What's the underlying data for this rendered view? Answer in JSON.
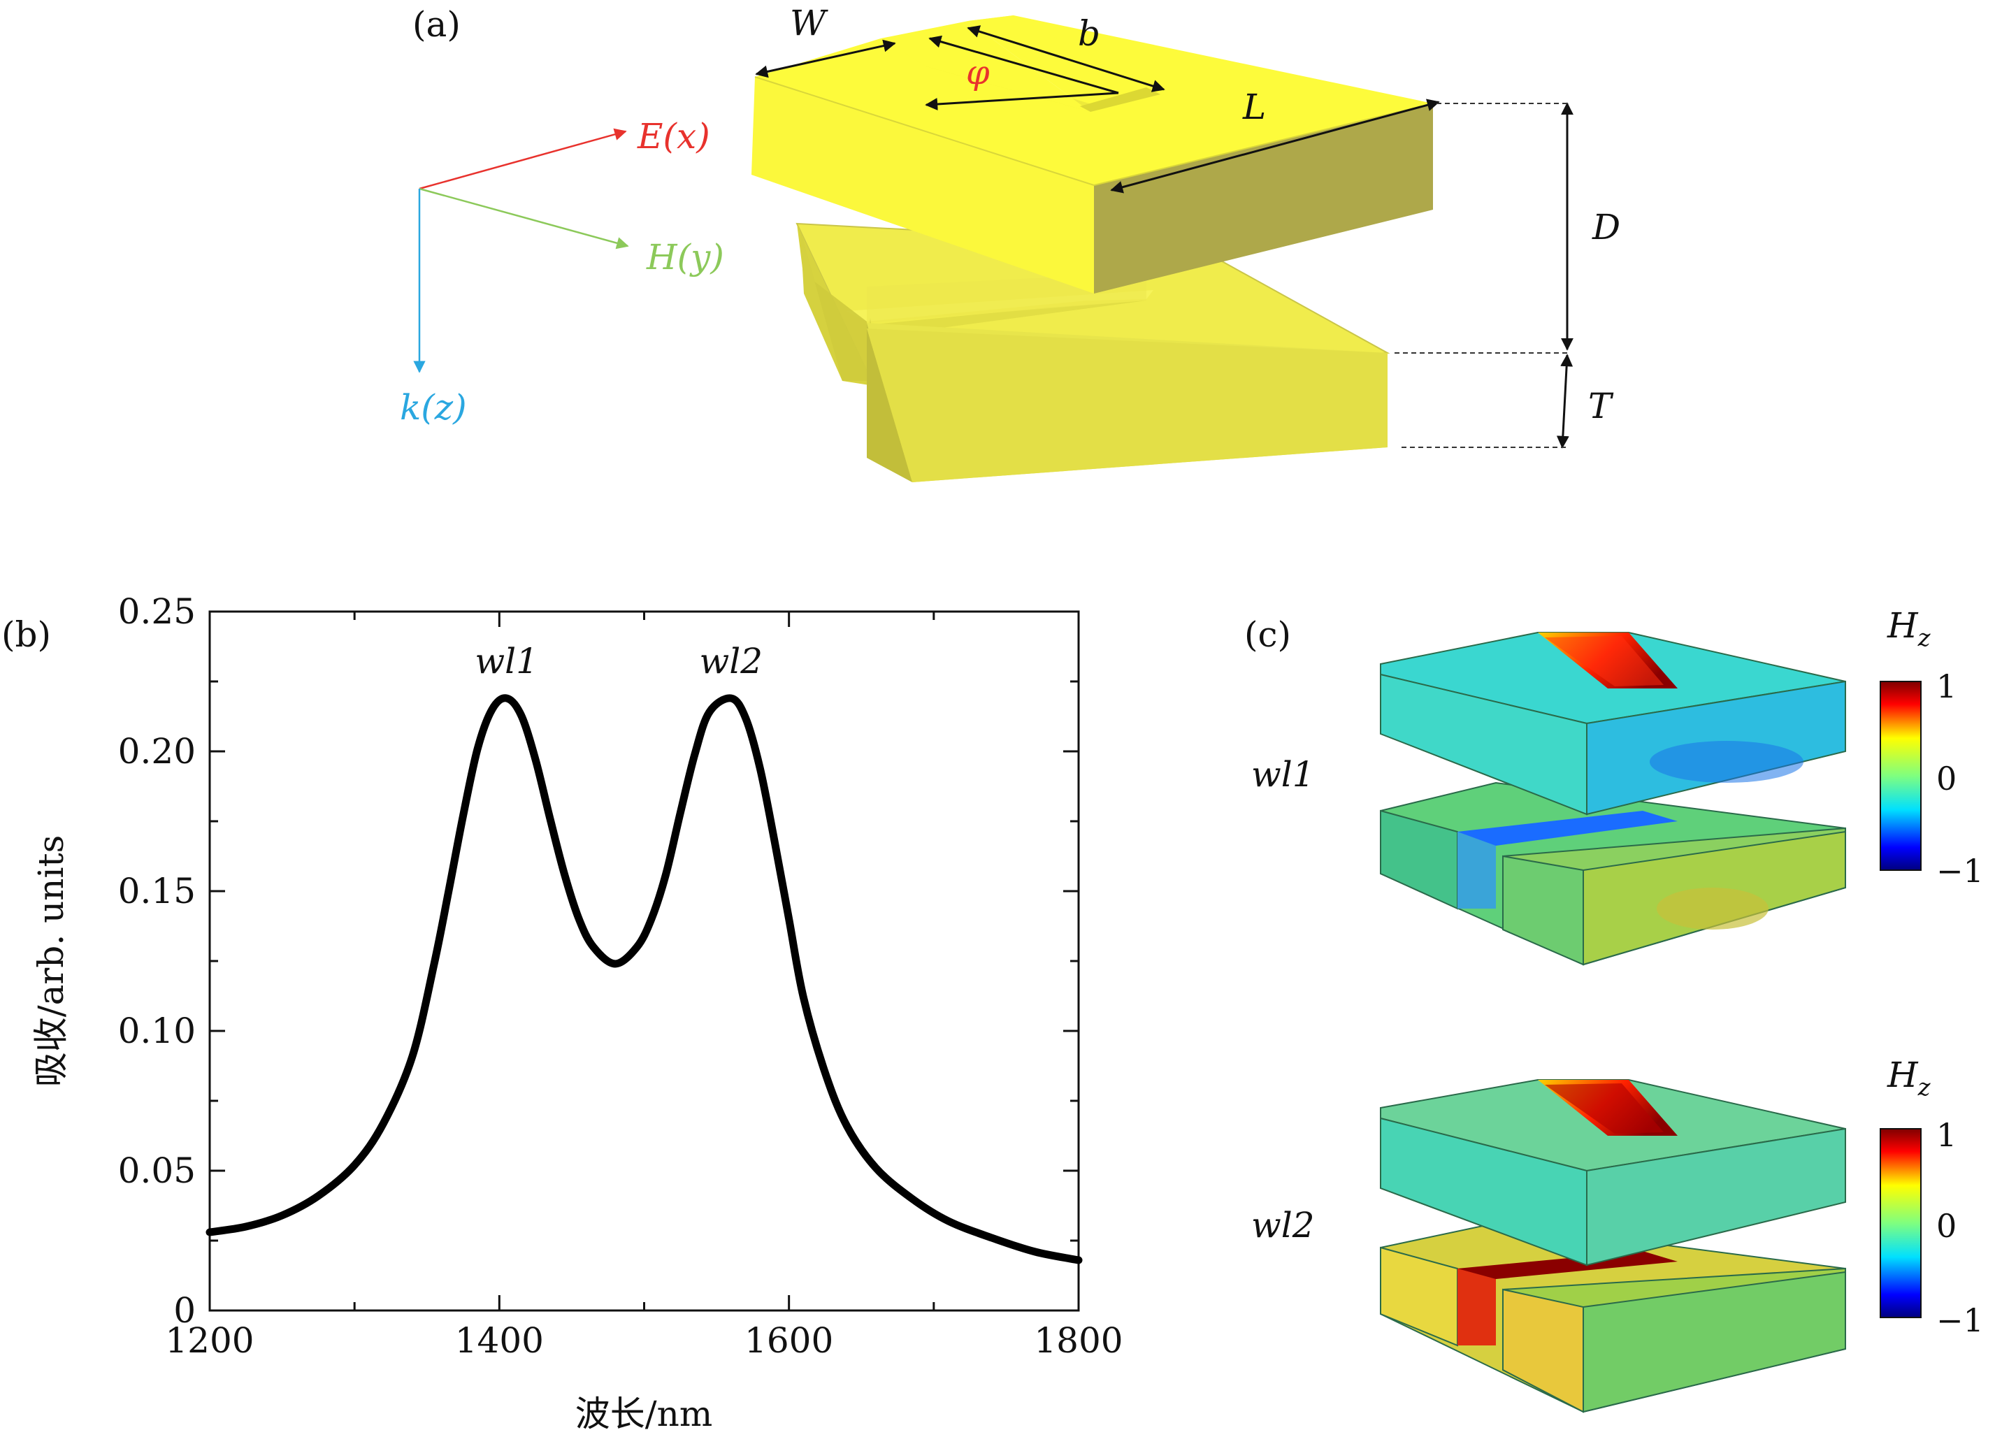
{
  "panel_a": {
    "label": "(a)",
    "dims": {
      "W": "W",
      "b": "b",
      "phi": "φ",
      "L": "L",
      "D": "D",
      "T": "T"
    },
    "axes": {
      "E": "E(x)",
      "H": "H(y)",
      "k": "k(z)"
    },
    "colors": {
      "gold_top": "#fdfb3b",
      "gold_side": "#aea84a",
      "gold_front": "#e9e64a",
      "E": "#e8322d",
      "H": "#8cc95a",
      "k": "#2aa7e0",
      "phi": "#e8322d"
    }
  },
  "panel_b": {
    "label": "(b)"
  },
  "panel_c": {
    "label": "(c)",
    "rows": [
      {
        "label": "wl1",
        "colorbar_title": "H_z",
        "ticks": [
          "1",
          "0",
          "−1"
        ]
      },
      {
        "label": "wl2",
        "colorbar_title": "H_z",
        "ticks": [
          "1",
          "0",
          "−1"
        ]
      }
    ]
  },
  "chart_data": {
    "type": "line",
    "title": "",
    "xlabel": "波长/nm",
    "ylabel": "吸收/arb. units",
    "xlim": [
      1200,
      1800
    ],
    "ylim": [
      0,
      0.25
    ],
    "xticks": [
      1200,
      1400,
      1600,
      1800
    ],
    "xtick_labels": [
      "1200",
      "1400",
      "1600",
      "1800"
    ],
    "yticks": [
      0,
      0.05,
      0.1,
      0.15,
      0.2,
      0.25
    ],
    "ytick_labels": [
      "0",
      "0.05",
      "0.10",
      "0.15",
      "0.20",
      "0.25"
    ],
    "grid": false,
    "series": [
      {
        "name": "absorption",
        "color": "#000000",
        "x": [
          1200,
          1225,
          1250,
          1275,
          1300,
          1320,
          1340,
          1355,
          1365,
          1375,
          1385,
          1395,
          1405,
          1415,
          1425,
          1435,
          1445,
          1455,
          1465,
          1480,
          1495,
          1505,
          1515,
          1525,
          1535,
          1545,
          1560,
          1570,
          1580,
          1590,
          1600,
          1610,
          1625,
          1640,
          1660,
          1685,
          1710,
          1740,
          1770,
          1800
        ],
        "y": [
          0.028,
          0.03,
          0.034,
          0.041,
          0.052,
          0.067,
          0.091,
          0.124,
          0.15,
          0.177,
          0.201,
          0.215,
          0.219,
          0.213,
          0.197,
          0.176,
          0.156,
          0.14,
          0.13,
          0.124,
          0.13,
          0.14,
          0.156,
          0.178,
          0.199,
          0.214,
          0.219,
          0.212,
          0.194,
          0.168,
          0.14,
          0.112,
          0.085,
          0.066,
          0.051,
          0.04,
          0.032,
          0.026,
          0.021,
          0.018
        ]
      }
    ],
    "annotations": [
      {
        "text": "wl1",
        "x": 1405,
        "y": 0.228
      },
      {
        "text": "wl2",
        "x": 1560,
        "y": 0.228
      }
    ]
  }
}
